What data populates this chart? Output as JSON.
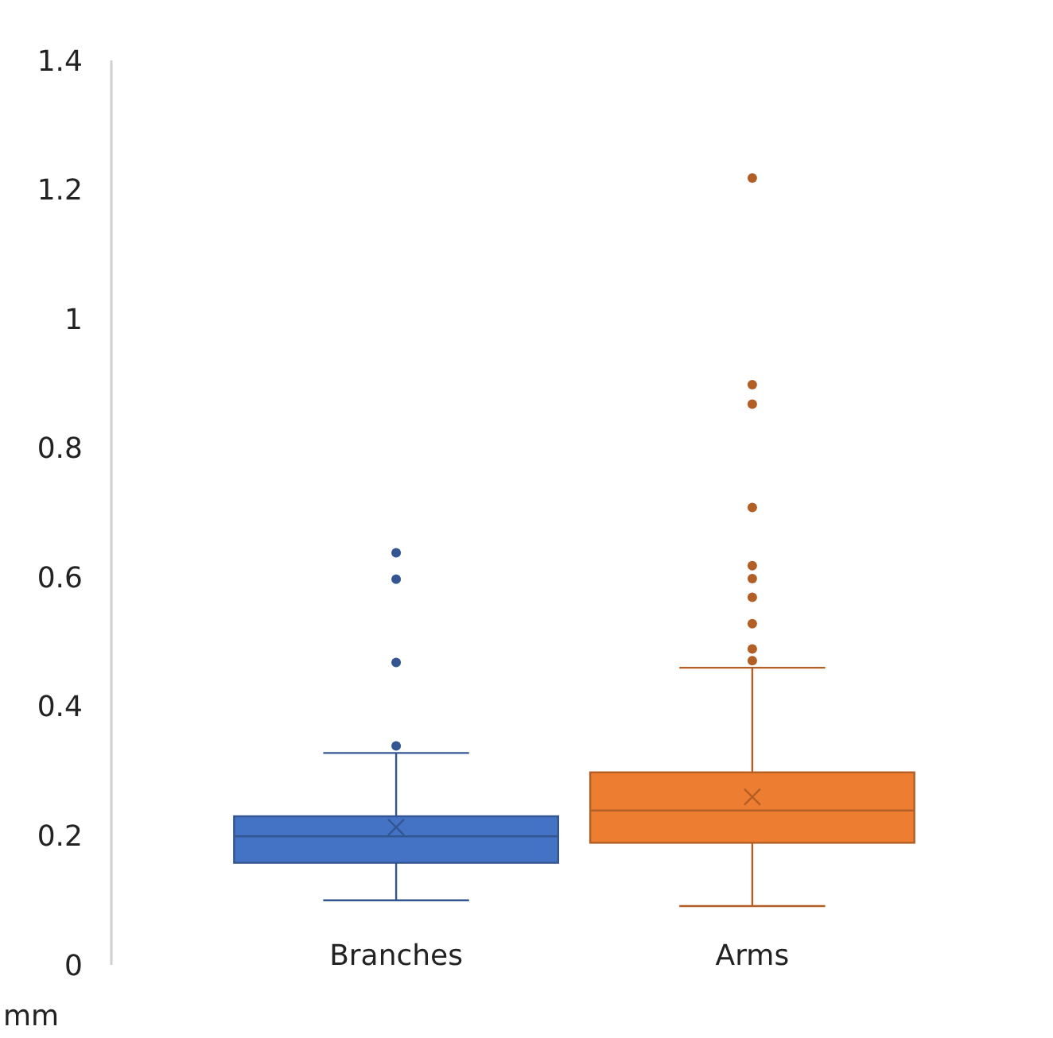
{
  "chart_data": {
    "type": "box",
    "ylabel": "mm",
    "categories": [
      "Branches",
      "Arms"
    ],
    "ylim": [
      0,
      1.4
    ],
    "yticks": [
      0,
      0.2,
      0.4,
      0.6,
      0.8,
      1,
      1.2,
      1.4
    ],
    "grid": false,
    "series": [
      {
        "color": "#4472c4",
        "boxes": [
          {
            "low": 0.1,
            "q1": 0.158,
            "median": 0.199,
            "q3": 0.23,
            "high": 0.328,
            "mean": 0.213,
            "outliers": [
              0.339,
              0.468,
              0.597,
              0.638
            ]
          },
          null
        ]
      },
      {
        "color": "#ed7d31",
        "boxes": [
          null,
          {
            "low": 0.091,
            "q1": 0.189,
            "median": 0.239,
            "q3": 0.298,
            "high": 0.46,
            "mean": 0.26,
            "outliers": [
              0.471,
              0.489,
              0.528,
              0.569,
              0.598,
              0.618,
              0.708,
              0.868,
              0.898,
              1.218
            ]
          }
        ]
      }
    ]
  }
}
